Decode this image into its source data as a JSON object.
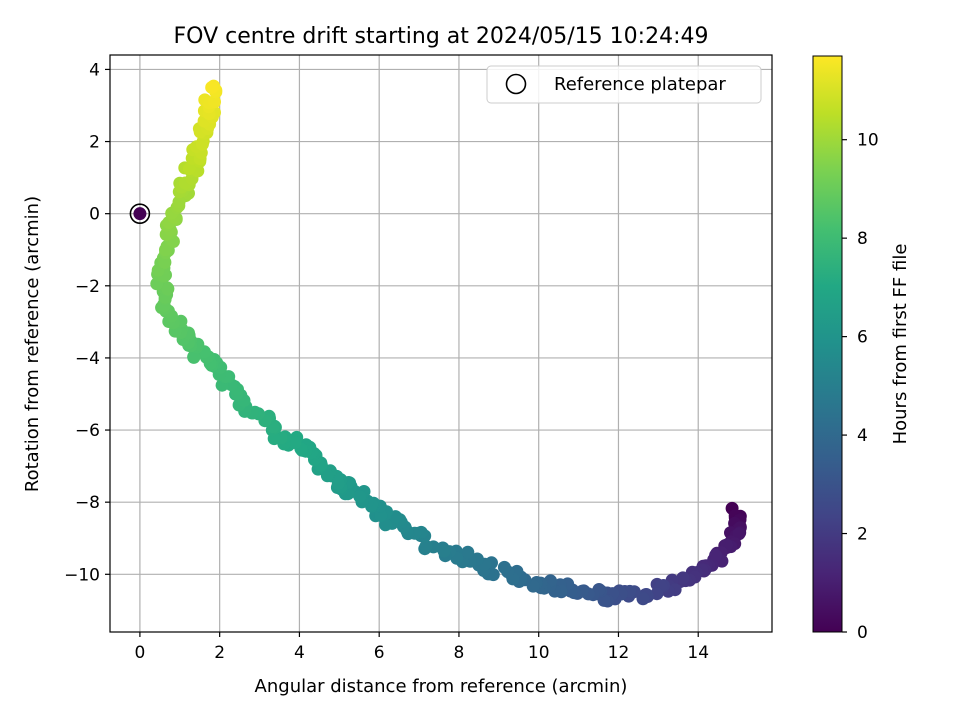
{
  "chart_data": {
    "type": "scatter",
    "title": "FOV centre drift starting at 2024/05/15 10:24:49",
    "xlabel": "Angular distance from reference (arcmin)",
    "ylabel": "Rotation from reference (arcmin)",
    "xlim": [
      -0.75,
      15.85
    ],
    "ylim": [
      -11.6,
      4.4
    ],
    "xticks": [
      "0",
      "2",
      "4",
      "6",
      "8",
      "10",
      "12",
      "14"
    ],
    "yticks": [
      "−10",
      "−8",
      "−6",
      "−4",
      "−2",
      "0",
      "2",
      "4"
    ],
    "grid": true,
    "legend": {
      "placement": "top-right",
      "entries": [
        "Reference platepar"
      ]
    },
    "colorbar": {
      "label": "Hours from first FF file",
      "range": [
        0,
        11.7
      ],
      "ticks": [
        "0",
        "2",
        "4",
        "6",
        "8",
        "10"
      ],
      "colormap": "viridis"
    },
    "reference_point": {
      "x": 0,
      "y": 0,
      "hours": 0
    },
    "path_knots": [
      {
        "x": 15.0,
        "y": -8.3,
        "hours": 0.0
      },
      {
        "x": 14.9,
        "y": -9.0,
        "hours": 0.7
      },
      {
        "x": 14.3,
        "y": -9.7,
        "hours": 1.3
      },
      {
        "x": 13.4,
        "y": -10.3,
        "hours": 2.0
      },
      {
        "x": 12.5,
        "y": -10.6,
        "hours": 2.6
      },
      {
        "x": 11.6,
        "y": -10.6,
        "hours": 3.0
      },
      {
        "x": 10.5,
        "y": -10.4,
        "hours": 3.6
      },
      {
        "x": 9.5,
        "y": -10.1,
        "hours": 4.1
      },
      {
        "x": 8.5,
        "y": -9.7,
        "hours": 4.6
      },
      {
        "x": 7.2,
        "y": -9.1,
        "hours": 5.1
      },
      {
        "x": 6.2,
        "y": -8.5,
        "hours": 5.7
      },
      {
        "x": 5.5,
        "y": -7.8,
        "hours": 6.1
      },
      {
        "x": 4.8,
        "y": -7.3,
        "hours": 6.5
      },
      {
        "x": 4.2,
        "y": -6.6,
        "hours": 6.9
      },
      {
        "x": 3.5,
        "y": -6.1,
        "hours": 7.2
      },
      {
        "x": 2.7,
        "y": -5.3,
        "hours": 7.6
      },
      {
        "x": 2.0,
        "y": -4.4,
        "hours": 8.0
      },
      {
        "x": 1.4,
        "y": -3.8,
        "hours": 8.3
      },
      {
        "x": 1.0,
        "y": -3.2,
        "hours": 8.6
      },
      {
        "x": 0.6,
        "y": -2.4,
        "hours": 8.9
      },
      {
        "x": 0.5,
        "y": -1.5,
        "hours": 9.2
      },
      {
        "x": 0.75,
        "y": -0.5,
        "hours": 9.6
      },
      {
        "x": 1.1,
        "y": 0.6,
        "hours": 10.1
      },
      {
        "x": 1.4,
        "y": 1.6,
        "hours": 10.6
      },
      {
        "x": 1.7,
        "y": 2.6,
        "hours": 11.1
      },
      {
        "x": 1.8,
        "y": 3.5,
        "hours": 11.6
      }
    ]
  }
}
